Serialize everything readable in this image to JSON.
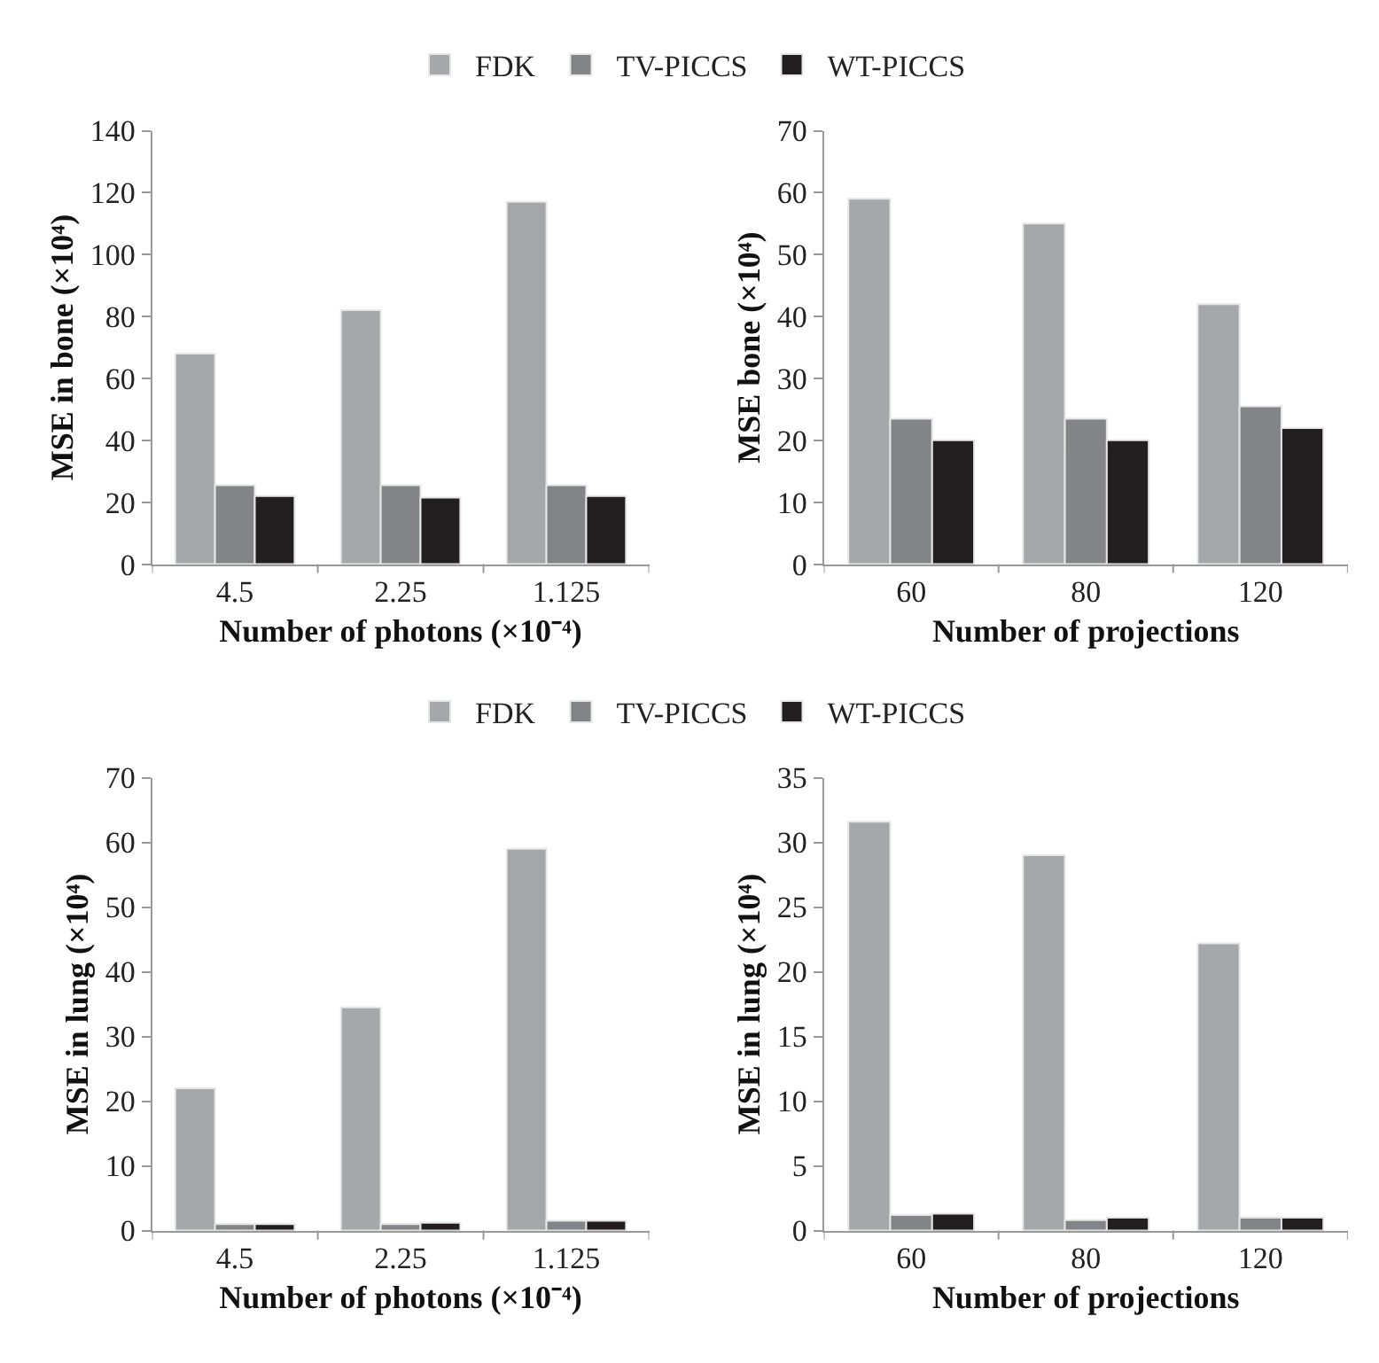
{
  "chart_data": [
    {
      "type": "bar",
      "categories": [
        "4.5",
        "2.25",
        "1.125"
      ],
      "xlabel": "Number of photons (×10⁻⁴)",
      "ylabel": "MSE in bone (×10⁴)",
      "ylim": [
        0,
        140
      ],
      "yticks": [
        0,
        20,
        40,
        60,
        80,
        100,
        120,
        140
      ],
      "legend": "top",
      "series": [
        {
          "name": "FDK",
          "color": "#a6a7ab",
          "values": [
            68,
            82,
            117
          ]
        },
        {
          "name": "TV-PICCS",
          "color": "#838487",
          "values": [
            25.5,
            25.5,
            25.5
          ]
        },
        {
          "name": "WT-PICCS",
          "color": "#231f20",
          "values": [
            22,
            21.5,
            22
          ]
        }
      ]
    },
    {
      "type": "bar",
      "categories": [
        "60",
        "80",
        "120"
      ],
      "xlabel": "Number of projections",
      "ylabel": "MSE bone (×10⁴)",
      "ylim": [
        0,
        70
      ],
      "yticks": [
        0,
        10,
        20,
        30,
        40,
        50,
        60,
        70
      ],
      "series": [
        {
          "color": "#a6a7ab",
          "values": [
            59,
            55,
            42
          ]
        },
        {
          "color": "#838487",
          "values": [
            23.5,
            23.5,
            25.5
          ]
        },
        {
          "color": "#231f20",
          "values": [
            20,
            20,
            22
          ]
        }
      ]
    },
    {
      "type": "bar",
      "categories": [
        "4.5",
        "2.25",
        "1.125"
      ],
      "xlabel": "Number of photons (×10⁻⁴)",
      "ylabel": "MSE in lung (×10⁴)",
      "ylim": [
        0,
        70
      ],
      "yticks": [
        0,
        10,
        20,
        30,
        40,
        50,
        60,
        70
      ],
      "legend": "top",
      "series": [
        {
          "name": "FDK",
          "color": "#a6a7ab",
          "values": [
            22,
            34.5,
            59
          ]
        },
        {
          "name": "TV-PICCS",
          "color": "#838487",
          "values": [
            1,
            1,
            1.5
          ]
        },
        {
          "name": "WT-PICCS",
          "color": "#231f20",
          "values": [
            1,
            1.2,
            1.5
          ]
        }
      ]
    },
    {
      "type": "bar",
      "categories": [
        "60",
        "80",
        "120"
      ],
      "xlabel": "Number of projections",
      "ylabel": "MSE in lung (×10⁴)",
      "ylim": [
        0,
        35
      ],
      "yticks": [
        0,
        5,
        10,
        15,
        20,
        25,
        30,
        35
      ],
      "series": [
        {
          "color": "#a6a7ab",
          "values": [
            31.6,
            29,
            22.2
          ]
        },
        {
          "color": "#838487",
          "values": [
            1.2,
            0.8,
            1.0
          ]
        },
        {
          "color": "#231f20",
          "values": [
            1.3,
            1.0,
            1.0
          ]
        }
      ]
    }
  ]
}
